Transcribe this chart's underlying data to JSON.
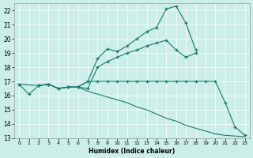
{
  "xlabel": "Humidex (Indice chaleur)",
  "bg_color": "#cceee8",
  "grid_color": "#ffffff",
  "line_color": "#1a7a6e",
  "xlim": [
    -0.5,
    23.5
  ],
  "ylim": [
    13,
    22.5
  ],
  "xticks": [
    0,
    1,
    2,
    3,
    4,
    5,
    6,
    7,
    8,
    9,
    10,
    11,
    12,
    13,
    14,
    15,
    16,
    17,
    18,
    19,
    20,
    21,
    22,
    23
  ],
  "yticks": [
    13,
    14,
    15,
    16,
    17,
    18,
    19,
    20,
    21,
    22
  ],
  "curve1_x": [
    0,
    1,
    2,
    3,
    4,
    5,
    6,
    7,
    8,
    9,
    10,
    11,
    12,
    13,
    14,
    15,
    16,
    17,
    18
  ],
  "curve1_y": [
    16.8,
    16.1,
    16.7,
    16.8,
    16.5,
    16.6,
    16.6,
    17.0,
    18.6,
    19.3,
    19.1,
    19.5,
    20.0,
    20.5,
    20.8,
    22.1,
    22.3,
    21.1,
    19.2
  ],
  "curve2_x": [
    2,
    3,
    4,
    5,
    6,
    7,
    8,
    9,
    10,
    11,
    12,
    13,
    14,
    15,
    16,
    17,
    18
  ],
  "curve2_y": [
    16.7,
    16.8,
    16.5,
    16.6,
    16.6,
    16.5,
    18.0,
    18.4,
    18.7,
    19.0,
    19.2,
    19.5,
    19.7,
    19.9,
    19.2,
    18.7,
    19.0
  ],
  "curve3_x": [
    2,
    3,
    4,
    5,
    6,
    7,
    8,
    9,
    10,
    11,
    12,
    13,
    14,
    15,
    16,
    17,
    18,
    19,
    20,
    21,
    22,
    23
  ],
  "curve3_y": [
    16.7,
    16.8,
    16.5,
    16.6,
    16.6,
    16.3,
    16.1,
    15.9,
    15.7,
    15.5,
    15.2,
    15.0,
    14.7,
    14.4,
    14.2,
    13.9,
    13.7,
    13.5,
    13.3,
    13.2,
    13.15,
    13.1
  ],
  "curve4_x": [
    0,
    2,
    3,
    4,
    5,
    6,
    7,
    8,
    9,
    10,
    11,
    12,
    13,
    14,
    15,
    16,
    17,
    18,
    19,
    20,
    21,
    22,
    23
  ],
  "curve4_y": [
    16.8,
    16.7,
    16.8,
    16.5,
    16.6,
    16.6,
    17.0,
    17.0,
    17.0,
    17.0,
    17.0,
    17.0,
    17.0,
    17.0,
    17.0,
    17.0,
    17.0,
    17.0,
    17.0,
    17.0,
    15.5,
    13.8,
    13.2
  ]
}
